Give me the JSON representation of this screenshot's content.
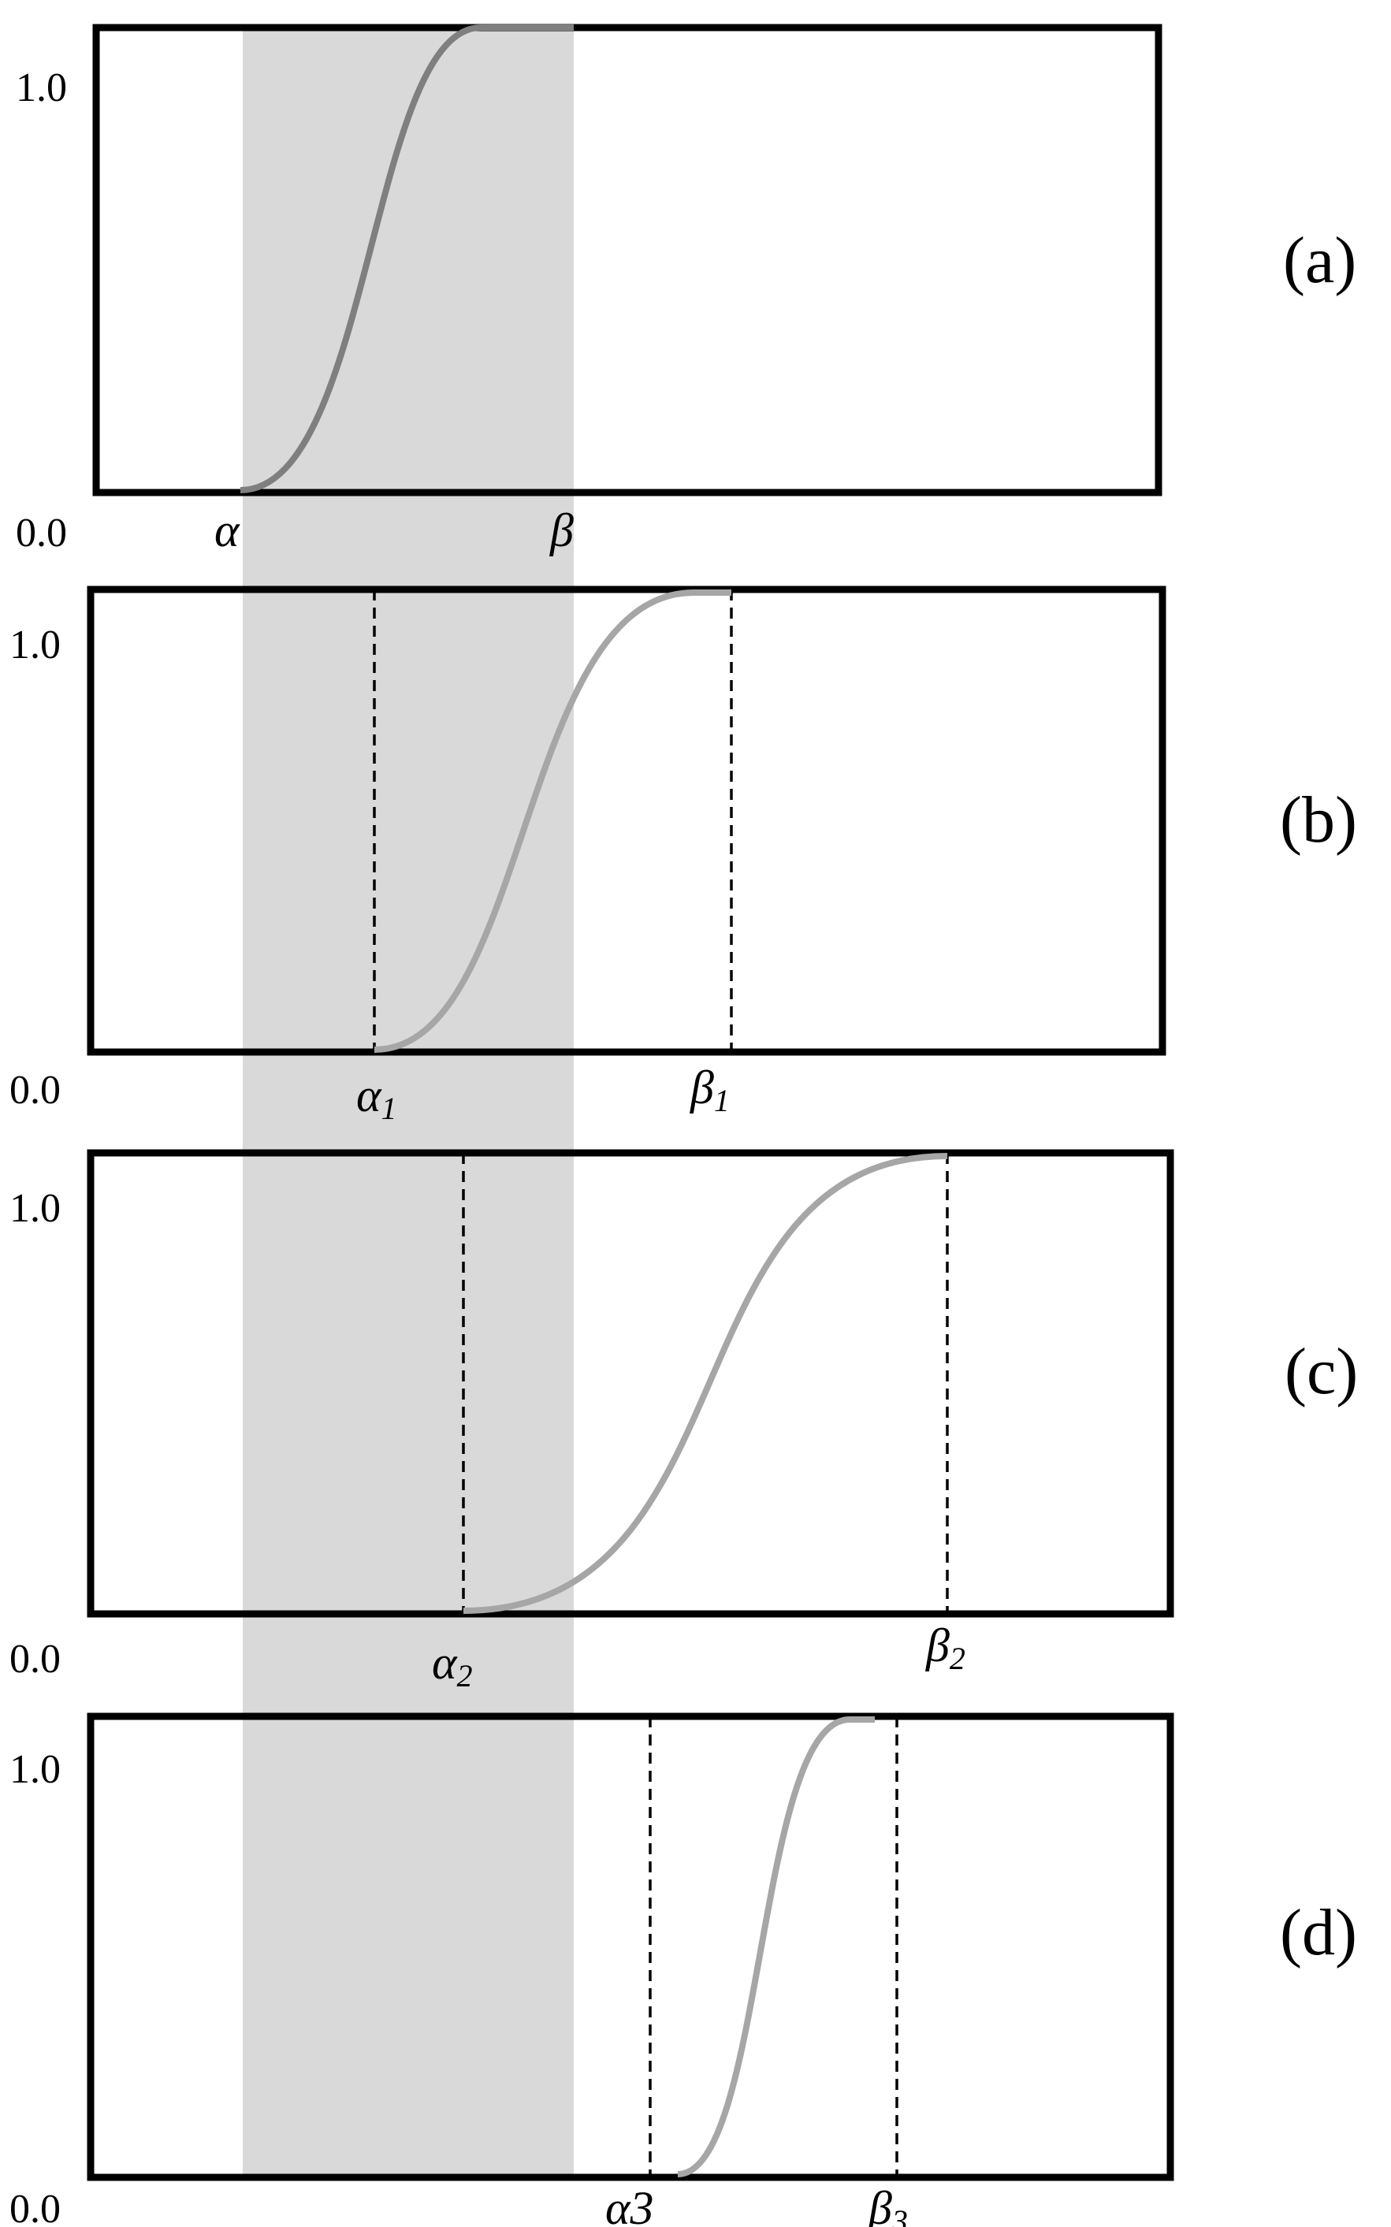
{
  "shaded_region": {
    "color": "#d9d9d9"
  },
  "panels": [
    {
      "label": "(a)",
      "y_top": "1.0",
      "y_bottom": "0.0",
      "alpha": {
        "sym": "α",
        "sub": ""
      },
      "beta": {
        "sym": "β",
        "sub": ""
      },
      "curve_color": "#7f7f7f",
      "show_dashed": false
    },
    {
      "label": "(b)",
      "y_top": "1.0",
      "y_bottom": "0.0",
      "alpha": {
        "sym": "α",
        "sub": "1"
      },
      "beta": {
        "sym": "β",
        "sub": "1"
      },
      "curve_color": "#a6a6a6",
      "show_dashed": true
    },
    {
      "label": "(c)",
      "y_top": "1.0",
      "y_bottom": "0.0",
      "alpha": {
        "sym": "α",
        "sub": "2"
      },
      "beta": {
        "sym": "β",
        "sub": "2"
      },
      "curve_color": "#a6a6a6",
      "show_dashed": true
    },
    {
      "label": "(d)",
      "y_top": "1.0",
      "y_bottom": "0.0",
      "alpha": {
        "sym": "α3",
        "sub": ""
      },
      "beta": {
        "sym": "β",
        "sub": "3"
      },
      "curve_color": "#a6a6a6",
      "show_dashed": true
    }
  ]
}
